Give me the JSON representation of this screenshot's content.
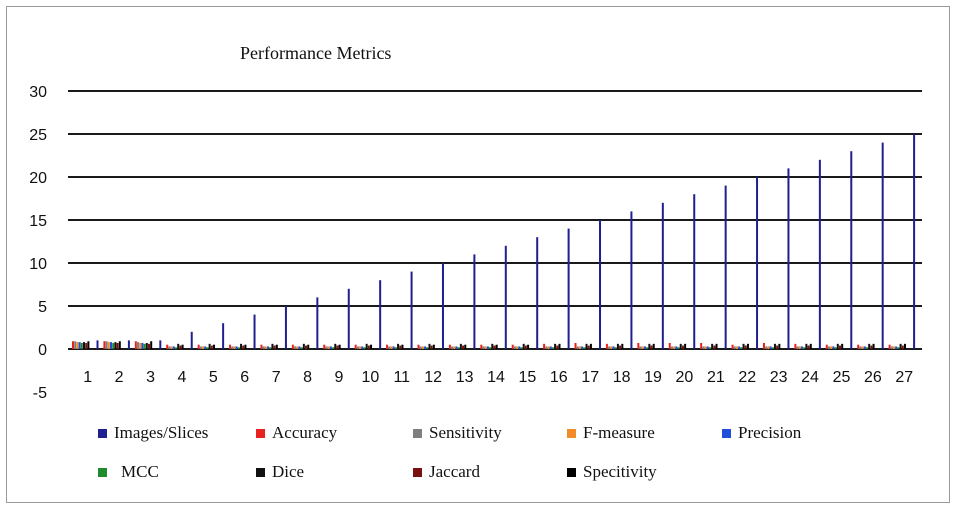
{
  "chart_data": {
    "type": "bar",
    "title": "Performance Metrics",
    "xlabel": "",
    "ylabel": "",
    "ylim": [
      -5,
      30
    ],
    "yticks": [
      30,
      25,
      20,
      15,
      10,
      5,
      0,
      -5
    ],
    "grid": true,
    "legend_position": "bottom",
    "categories": [
      "1",
      "2",
      "3",
      "4",
      "5",
      "6",
      "7",
      "8",
      "9",
      "10",
      "11",
      "12",
      "13",
      "14",
      "15",
      "16",
      "17",
      "18",
      "19",
      "20",
      "21",
      "22",
      "23",
      "24",
      "25",
      "26",
      "27"
    ],
    "series": [
      {
        "name": "Images/Slices",
        "color": "#1f1f8f",
        "values": [
          1,
          1,
          1,
          2,
          3,
          4,
          5,
          6,
          7,
          8,
          9,
          10,
          11,
          12,
          13,
          14,
          15,
          16,
          17,
          18,
          19,
          20,
          21,
          22,
          23,
          24,
          25
        ]
      },
      {
        "name": "Accuracy",
        "color": "#e8231f",
        "values": [
          0.9,
          0.9,
          0.9,
          0.5,
          0.5,
          0.5,
          0.5,
          0.5,
          0.5,
          0.5,
          0.5,
          0.5,
          0.5,
          0.5,
          0.5,
          0.6,
          0.7,
          0.6,
          0.7,
          0.7,
          0.7,
          0.5,
          0.7,
          0.6,
          0.5,
          0.5,
          0.5
        ]
      },
      {
        "name": "Sensitivity",
        "color": "#7f7f7f",
        "values": [
          0.9,
          0.9,
          0.8,
          0.3,
          0.3,
          0.3,
          0.3,
          0.3,
          0.3,
          0.3,
          0.3,
          0.3,
          0.3,
          0.3,
          0.3,
          0.3,
          0.3,
          0.3,
          0.3,
          0.3,
          0.3,
          0.3,
          0.3,
          0.3,
          0.3,
          0.3,
          0.3
        ]
      },
      {
        "name": "F-measure",
        "color": "#f28c28",
        "values": [
          0.8,
          0.8,
          0.7,
          0.3,
          0.3,
          0.3,
          0.3,
          0.3,
          0.3,
          0.3,
          0.3,
          0.3,
          0.3,
          0.3,
          0.3,
          0.3,
          0.3,
          0.3,
          0.3,
          0.3,
          0.3,
          0.3,
          0.3,
          0.3,
          0.3,
          0.3,
          0.3
        ]
      },
      {
        "name": "Precision",
        "color": "#1f4fd8",
        "values": [
          0.8,
          0.8,
          0.7,
          0.3,
          0.3,
          0.3,
          0.3,
          0.3,
          0.3,
          0.3,
          0.3,
          0.3,
          0.3,
          0.3,
          0.3,
          0.3,
          0.3,
          0.3,
          0.3,
          0.3,
          0.3,
          0.3,
          0.3,
          0.3,
          0.3,
          0.3,
          0.3
        ]
      },
      {
        "name": "MCC",
        "color": "#1e8c2e",
        "values": [
          0.7,
          0.7,
          0.6,
          0.2,
          0.2,
          0.2,
          0.2,
          0.2,
          0.2,
          0.2,
          0.2,
          0.2,
          0.2,
          0.2,
          0.2,
          0.2,
          0.2,
          0.2,
          0.2,
          0.2,
          0.2,
          0.2,
          0.2,
          0.2,
          0.2,
          0.2,
          0.2
        ]
      },
      {
        "name": "Dice",
        "color": "#111111",
        "values": [
          0.8,
          0.8,
          0.7,
          0.6,
          0.6,
          0.6,
          0.6,
          0.6,
          0.6,
          0.6,
          0.6,
          0.6,
          0.6,
          0.6,
          0.6,
          0.6,
          0.6,
          0.6,
          0.6,
          0.6,
          0.6,
          0.6,
          0.6,
          0.6,
          0.6,
          0.6,
          0.6
        ]
      },
      {
        "name": "Jaccard",
        "color": "#7a1010",
        "values": [
          0.7,
          0.7,
          0.6,
          0.4,
          0.4,
          0.4,
          0.4,
          0.4,
          0.4,
          0.4,
          0.4,
          0.4,
          0.4,
          0.4,
          0.4,
          0.4,
          0.4,
          0.4,
          0.4,
          0.4,
          0.4,
          0.4,
          0.4,
          0.4,
          0.4,
          0.4,
          0.4
        ]
      },
      {
        "name": "Specitivity",
        "color": "#000000",
        "values": [
          0.9,
          0.9,
          0.9,
          0.5,
          0.5,
          0.5,
          0.5,
          0.5,
          0.5,
          0.5,
          0.5,
          0.5,
          0.5,
          0.5,
          0.5,
          0.6,
          0.6,
          0.6,
          0.6,
          0.6,
          0.6,
          0.6,
          0.6,
          0.6,
          0.6,
          0.6,
          0.6
        ]
      }
    ]
  }
}
